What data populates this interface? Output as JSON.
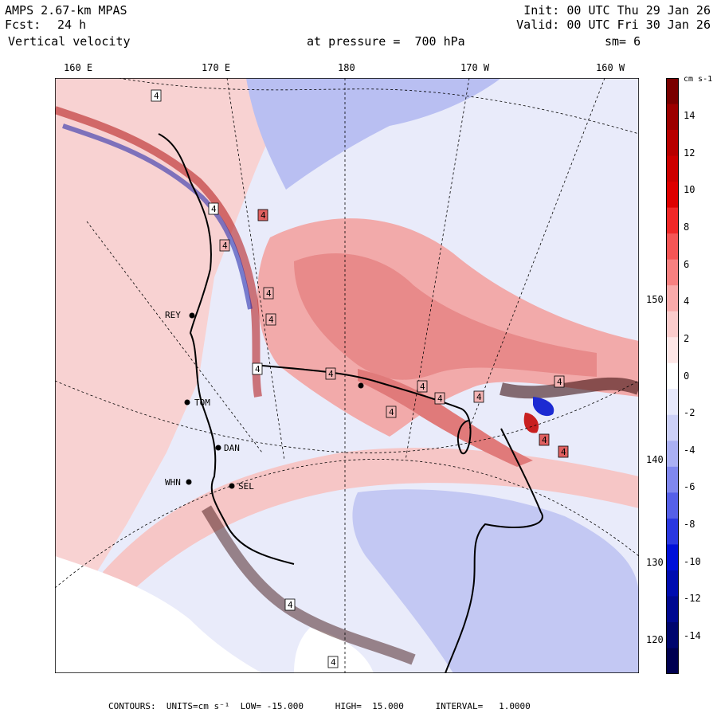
{
  "header": {
    "model": "AMPS 2.67-km MPAS",
    "fcst_label": "Fcst:",
    "fcst_value": "24 h",
    "variable": "Vertical velocity",
    "init": "Init: 00 UTC Thu 29 Jan 26",
    "valid": "Valid: 00 UTC Fri 30 Jan 26",
    "pressure": "at pressure =  700 hPa",
    "smooth": "sm= 6"
  },
  "longitude_labels": [
    "160 E",
    "170 E",
    "180",
    "170 W",
    "160 W"
  ],
  "latitude_labels": [
    "150 W",
    "140 W",
    "130 W",
    "120 W"
  ],
  "stations": [
    "REY",
    "TOM",
    "DAN",
    "WHN",
    "SEL"
  ],
  "contour_label": "4",
  "colorbar": {
    "units": "cm s-1",
    "ticks": [
      "14",
      "12",
      "10",
      "8",
      "6",
      "4",
      "2",
      "0",
      "-2",
      "-4",
      "-6",
      "-8",
      "-10",
      "-12",
      "-14"
    ],
    "colors": [
      "#7a0000",
      "#9c0000",
      "#b80000",
      "#cc0000",
      "#de0000",
      "#f02828",
      "#f55555",
      "#f78080",
      "#f9aaaa",
      "#fbcccc",
      "#fde6e6",
      "#ffffff",
      "#e6e8fb",
      "#ccd0f7",
      "#aab0f3",
      "#8088ee",
      "#5560e8",
      "#2a38e0",
      "#0010d8",
      "#000cb0",
      "#000890",
      "#00056e",
      "#000050"
    ]
  },
  "footer": "CONTOURS:  UNITS=cm s⁻¹  LOW= -15.000      HIGH=  15.000      INTERVAL=   1.0000",
  "map_colors": {
    "background": "#e9ebfa",
    "positive": "#f4b3b3",
    "strong_positive": "#d43030",
    "negative": "#a9b0ee",
    "strong_negative": "#1c2ad2",
    "grid": "#000000"
  }
}
